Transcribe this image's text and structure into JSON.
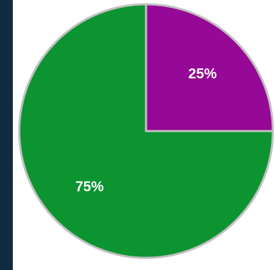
{
  "colors": {
    "background": "#0f2b3f",
    "canvas": "#ffffff",
    "slice_green": "#0b9430",
    "slice_purple": "#960896",
    "slice_stroke": "#c0c0c0"
  },
  "chart_data": {
    "type": "pie",
    "slices": [
      {
        "value": 25,
        "label": "25%",
        "color": "#960896"
      },
      {
        "value": 75,
        "label": "75%",
        "color": "#0b9430"
      }
    ],
    "start_angle_deg": 0,
    "direction": "clockwise",
    "legend": "none"
  }
}
